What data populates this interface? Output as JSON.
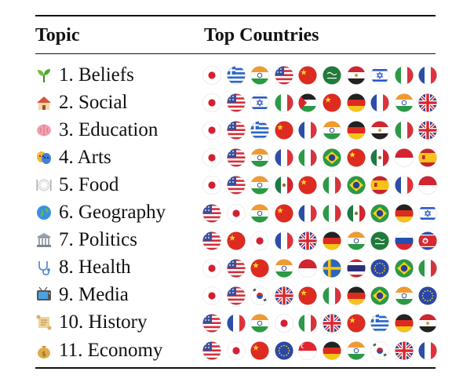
{
  "header": {
    "topic": "Topic",
    "countries": "Top Countries"
  },
  "rows": [
    {
      "label": "1. Beliefs",
      "emoji": "seedling-icon",
      "flags": [
        "japan",
        "greece",
        "india",
        "usa",
        "china",
        "saudi-arabia",
        "egypt",
        "israel",
        "italy",
        "france"
      ]
    },
    {
      "label": "2. Social",
      "emoji": "house-icon",
      "flags": [
        "japan",
        "usa",
        "israel",
        "italy",
        "palestine",
        "china",
        "germany",
        "france",
        "india",
        "uk"
      ]
    },
    {
      "label": "3. Education",
      "emoji": "brain-icon",
      "flags": [
        "japan",
        "usa",
        "greece",
        "china",
        "france",
        "india",
        "germany",
        "egypt",
        "italy",
        "uk"
      ]
    },
    {
      "label": "4. Arts",
      "emoji": "theater-masks-icon",
      "flags": [
        "japan",
        "usa",
        "india",
        "france",
        "italy",
        "brazil",
        "china",
        "mexico",
        "indonesia",
        "spain"
      ]
    },
    {
      "label": "5. Food",
      "emoji": "plate-icon",
      "flags": [
        "japan",
        "usa",
        "india",
        "mexico",
        "china",
        "italy",
        "brazil",
        "spain",
        "france",
        "indonesia"
      ]
    },
    {
      "label": "6. Geography",
      "emoji": "globe-icon",
      "flags": [
        "usa",
        "japan",
        "india",
        "china",
        "france",
        "italy",
        "mexico",
        "brazil",
        "germany",
        "israel"
      ]
    },
    {
      "label": "7. Politics",
      "emoji": "classical-building-icon",
      "flags": [
        "usa",
        "china",
        "japan",
        "france",
        "uk",
        "germany",
        "india",
        "saudi-arabia",
        "russia",
        "north-korea"
      ]
    },
    {
      "label": "8. Health",
      "emoji": "stethoscope-icon",
      "flags": [
        "japan",
        "usa",
        "china",
        "india",
        "indonesia",
        "sweden",
        "thailand",
        "eu",
        "brazil",
        "italy"
      ]
    },
    {
      "label": "9. Media",
      "emoji": "television-icon",
      "flags": [
        "japan",
        "usa",
        "south-korea",
        "uk",
        "china",
        "italy",
        "germany",
        "brazil",
        "india",
        "eu"
      ]
    },
    {
      "label": "10. History",
      "emoji": "scroll-icon",
      "flags": [
        "usa",
        "france",
        "india",
        "japan",
        "italy",
        "uk",
        "china",
        "greece",
        "germany",
        "egypt"
      ]
    },
    {
      "label": "11. Economy",
      "emoji": "money-bag-icon",
      "flags": [
        "usa",
        "japan",
        "china",
        "eu",
        "singapore",
        "germany",
        "india",
        "south-korea",
        "uk",
        "france"
      ]
    }
  ]
}
